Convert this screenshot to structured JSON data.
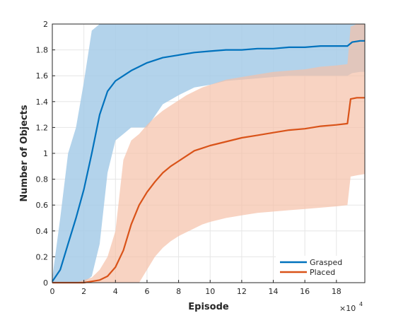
{
  "chart_data": {
    "type": "line",
    "title": "",
    "xlabel": "Episode",
    "ylabel": "Number of Objects",
    "x_exponent_label": "×10",
    "x_exponent_power": "4",
    "xlim": [
      0,
      19.8
    ],
    "ylim": [
      0,
      2
    ],
    "xticks": [
      0,
      2,
      4,
      6,
      8,
      10,
      12,
      14,
      16,
      18
    ],
    "xtick_labels": [
      "0",
      "2",
      "4",
      "6",
      "8",
      "10",
      "12",
      "14",
      "16",
      "18"
    ],
    "yticks": [
      0,
      0.2,
      0.4,
      0.6,
      0.8,
      1,
      1.2,
      1.4,
      1.6,
      1.8,
      2
    ],
    "ytick_labels": [
      "0",
      "0.2",
      "0.4",
      "0.6",
      "0.8",
      "1",
      "1.2",
      "1.4",
      "1.6",
      "1.8",
      "2"
    ],
    "grid": true,
    "legend_position": "bottom-right",
    "series": [
      {
        "name": "Grasped",
        "color": "#0072BD",
        "band_color": "#a6cbe8",
        "x": [
          0,
          0.5,
          1,
          1.5,
          2,
          2.5,
          3,
          3.5,
          4,
          4.5,
          5,
          5.5,
          6,
          7,
          8,
          9,
          10,
          11,
          12,
          13,
          14,
          15,
          16,
          17,
          18,
          18.7,
          19,
          19.5,
          19.8
        ],
        "mean": [
          0.01,
          0.1,
          0.3,
          0.5,
          0.72,
          1.0,
          1.3,
          1.48,
          1.56,
          1.6,
          1.64,
          1.67,
          1.7,
          1.74,
          1.76,
          1.78,
          1.79,
          1.8,
          1.8,
          1.81,
          1.81,
          1.82,
          1.82,
          1.83,
          1.83,
          1.83,
          1.86,
          1.87,
          1.87
        ],
        "upper": [
          0.04,
          0.5,
          1.0,
          1.2,
          1.55,
          1.95,
          2.0,
          2.0,
          2.0,
          2.0,
          2.0,
          2.0,
          2.0,
          2.0,
          2.0,
          2.0,
          2.0,
          2.0,
          2.0,
          2.0,
          2.0,
          2.0,
          2.0,
          2.0,
          2.0,
          2.0,
          2.0,
          2.0,
          2.0
        ],
        "lower": [
          0.0,
          0.0,
          0.0,
          0.0,
          0.0,
          0.05,
          0.3,
          0.85,
          1.1,
          1.15,
          1.2,
          1.2,
          1.2,
          1.38,
          1.45,
          1.51,
          1.53,
          1.56,
          1.57,
          1.58,
          1.59,
          1.6,
          1.6,
          1.6,
          1.6,
          1.6,
          1.62,
          1.63,
          1.63
        ]
      },
      {
        "name": "Placed",
        "color": "#D95319",
        "band_color": "#f5c0a8",
        "x": [
          0,
          1,
          1.5,
          2,
          2.5,
          3,
          3.5,
          4,
          4.5,
          5,
          5.5,
          6,
          6.5,
          7,
          7.5,
          8,
          8.5,
          9,
          9.5,
          10,
          11,
          12,
          13,
          14,
          15,
          16,
          17,
          18,
          18.7,
          18.9,
          19.3,
          19.8
        ],
        "mean": [
          0,
          0,
          0,
          0.0,
          0.01,
          0.02,
          0.05,
          0.12,
          0.25,
          0.45,
          0.6,
          0.7,
          0.78,
          0.85,
          0.9,
          0.94,
          0.98,
          1.02,
          1.04,
          1.06,
          1.09,
          1.12,
          1.14,
          1.16,
          1.18,
          1.19,
          1.21,
          1.22,
          1.23,
          1.42,
          1.43,
          1.43
        ],
        "upper": [
          0,
          0,
          0,
          0.02,
          0.04,
          0.1,
          0.2,
          0.4,
          0.95,
          1.1,
          1.15,
          1.22,
          1.28,
          1.33,
          1.37,
          1.41,
          1.45,
          1.48,
          1.51,
          1.53,
          1.57,
          1.59,
          1.61,
          1.63,
          1.64,
          1.65,
          1.67,
          1.68,
          1.69,
          1.98,
          2.0,
          2.0
        ],
        "lower": [
          0,
          0,
          0,
          0,
          0,
          0,
          0,
          0,
          0,
          0,
          0.0,
          0.1,
          0.2,
          0.27,
          0.32,
          0.36,
          0.39,
          0.42,
          0.45,
          0.47,
          0.5,
          0.52,
          0.54,
          0.55,
          0.56,
          0.57,
          0.58,
          0.59,
          0.6,
          0.82,
          0.83,
          0.84
        ]
      }
    ]
  }
}
